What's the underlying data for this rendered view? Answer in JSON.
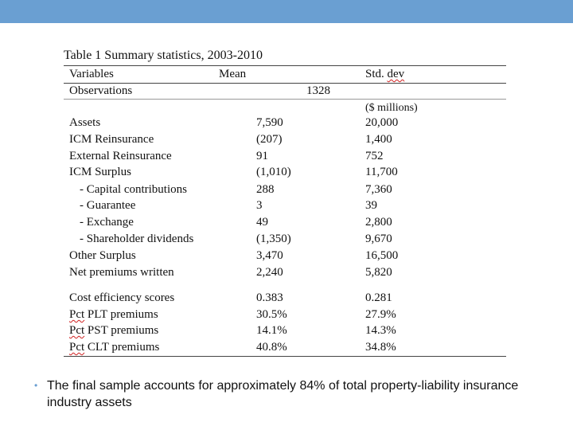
{
  "header": {
    "accent_color": "#6a9fd2"
  },
  "table": {
    "title": "Table 1 Summary statistics, 2003-2010",
    "headers": {
      "variables": "Variables",
      "mean": "Mean",
      "std_a": "Std. ",
      "std_b": "dev"
    },
    "observations": {
      "label": "Observations",
      "value": "1328"
    },
    "units": "($ millions)",
    "rows": [
      {
        "label": "Assets",
        "mean": "7,590",
        "std": "20,000"
      },
      {
        "label": "ICM Reinsurance",
        "mean": "(207)",
        "std": "1,400"
      },
      {
        "label": "External Reinsurance",
        "mean": "91",
        "std": "752"
      },
      {
        "label": "ICM Surplus",
        "mean": "(1,010)",
        "std": "11,700"
      },
      {
        "label": "- Capital contributions",
        "mean": "288",
        "std": "7,360"
      },
      {
        "label": "- Guarantee",
        "mean": "3",
        "std": "39"
      },
      {
        "label": "- Exchange",
        "mean": "49",
        "std": "2,800"
      },
      {
        "label": "- Shareholder dividends",
        "mean": "(1,350)",
        "std": "9,670"
      },
      {
        "label": "Other Surplus",
        "mean": "3,470",
        "std": "16,500"
      },
      {
        "label": "Net premiums written",
        "mean": "2,240",
        "std": "5,820"
      },
      {
        "label": "Cost efficiency scores",
        "mean": "0.383",
        "std": "0.281"
      },
      {
        "pct_word": "Pct",
        "label_rest": " PLT premiums",
        "mean": "30.5%",
        "std": "27.9%"
      },
      {
        "pct_word": "Pct",
        "label_rest": " PST premiums",
        "mean": "14.1%",
        "std": "14.3%"
      },
      {
        "pct_word": "Pct",
        "label_rest": " CLT premiums",
        "mean": "40.8%",
        "std": "34.8%"
      }
    ]
  },
  "bullet": {
    "text": "The final sample accounts for approximately 84% of total property-liability insurance industry assets"
  }
}
